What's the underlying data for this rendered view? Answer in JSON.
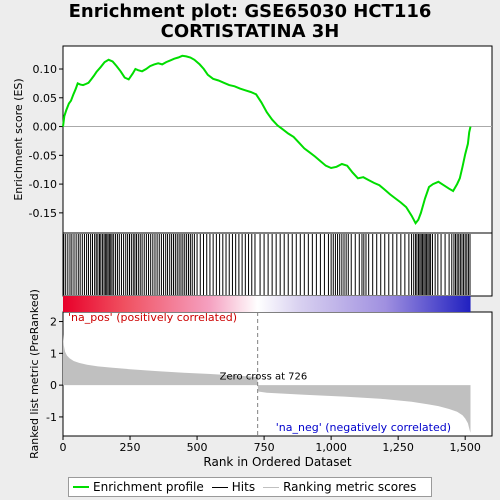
{
  "chart_data": {
    "type": "line",
    "title": "Enrichment plot: GSE65030 HCT116\nCORTISTATINA 3H",
    "colors": {
      "es_line": "#00dd00",
      "hits": "#000000",
      "metric_fill": "#c0c0c0",
      "pos_label": "#cc0000",
      "neg_label": "#0000cc",
      "zero_cross_line": "#808080"
    },
    "es_panel": {
      "ylabel": "Enrichment score (ES)",
      "ylim": [
        -0.185,
        0.14
      ],
      "yticks": [
        0.1,
        0.05,
        0.0,
        -0.05,
        -0.1,
        -0.15
      ],
      "ytick_labels": [
        "0.10",
        "0.05",
        "0.00",
        "-0.05",
        "-0.10",
        "-0.15"
      ],
      "series": [
        {
          "name": "Enrichment profile",
          "x": [
            0,
            5,
            12,
            22,
            30,
            38,
            47,
            55,
            65,
            75,
            85,
            95,
            105,
            115,
            125,
            140,
            155,
            170,
            185,
            200,
            215,
            230,
            245,
            260,
            270,
            280,
            295,
            310,
            325,
            340,
            355,
            370,
            385,
            400,
            415,
            430,
            445,
            460,
            475,
            490,
            510,
            525,
            540,
            560,
            580,
            600,
            620,
            640,
            660,
            680,
            700,
            720,
            740,
            760,
            780,
            800,
            820,
            840,
            860,
            880,
            900,
            920,
            940,
            960,
            980,
            1000,
            1020,
            1040,
            1060,
            1080,
            1100,
            1120,
            1140,
            1160,
            1180,
            1200,
            1220,
            1240,
            1260,
            1280,
            1300,
            1315,
            1325,
            1335,
            1350,
            1365,
            1380,
            1400,
            1420,
            1440,
            1455,
            1470,
            1480,
            1490,
            1500,
            1510,
            1515,
            1520
          ],
          "y": [
            0.0,
            0.018,
            0.028,
            0.04,
            0.045,
            0.055,
            0.065,
            0.075,
            0.073,
            0.072,
            0.074,
            0.076,
            0.082,
            0.088,
            0.095,
            0.103,
            0.112,
            0.116,
            0.113,
            0.105,
            0.096,
            0.085,
            0.082,
            0.092,
            0.1,
            0.098,
            0.096,
            0.1,
            0.105,
            0.108,
            0.11,
            0.108,
            0.112,
            0.115,
            0.118,
            0.12,
            0.123,
            0.122,
            0.12,
            0.116,
            0.108,
            0.1,
            0.09,
            0.083,
            0.08,
            0.076,
            0.072,
            0.07,
            0.066,
            0.063,
            0.06,
            0.056,
            0.042,
            0.025,
            0.012,
            0.002,
            -0.005,
            -0.012,
            -0.018,
            -0.028,
            -0.038,
            -0.045,
            -0.052,
            -0.06,
            -0.068,
            -0.072,
            -0.07,
            -0.065,
            -0.068,
            -0.08,
            -0.09,
            -0.088,
            -0.093,
            -0.098,
            -0.102,
            -0.11,
            -0.118,
            -0.125,
            -0.132,
            -0.14,
            -0.155,
            -0.168,
            -0.162,
            -0.15,
            -0.125,
            -0.105,
            -0.1,
            -0.096,
            -0.102,
            -0.108,
            -0.112,
            -0.1,
            -0.09,
            -0.07,
            -0.048,
            -0.03,
            -0.01,
            0.0
          ]
        }
      ]
    },
    "hits_panel": {
      "legend_name": "Hits",
      "positions": [
        3,
        10,
        18,
        26,
        33,
        41,
        49,
        57,
        64,
        72,
        80,
        88,
        95,
        103,
        110,
        118,
        124,
        130,
        136,
        141,
        147,
        153,
        158,
        163,
        168,
        173,
        178,
        183,
        189,
        196,
        203,
        210,
        218,
        226,
        234,
        241,
        248,
        255,
        262,
        268,
        274,
        281,
        288,
        295,
        303,
        311,
        319,
        327,
        335,
        343,
        351,
        359,
        367,
        375,
        383,
        390,
        398,
        405,
        412,
        419,
        426,
        433,
        440,
        447,
        454,
        461,
        468,
        475,
        482,
        490,
        500,
        512,
        524,
        536,
        548,
        560,
        572,
        584,
        596,
        608,
        620,
        632,
        644,
        656,
        668,
        680,
        692,
        704,
        716,
        735,
        750,
        765,
        780,
        795,
        810,
        825,
        840,
        855,
        870,
        885,
        900,
        915,
        930,
        945,
        960,
        975,
        990,
        1000,
        1008,
        1016,
        1024,
        1032,
        1040,
        1048,
        1056,
        1064,
        1075,
        1090,
        1105,
        1115,
        1122,
        1130,
        1140,
        1155,
        1170,
        1185,
        1200,
        1215,
        1230,
        1245,
        1260,
        1275,
        1290,
        1300,
        1308,
        1315,
        1320,
        1326,
        1331,
        1336,
        1341,
        1346,
        1351,
        1356,
        1361,
        1366,
        1371,
        1378,
        1388,
        1398,
        1410,
        1425,
        1440,
        1450,
        1458,
        1464,
        1470,
        1476,
        1482,
        1488,
        1494,
        1500,
        1506,
        1512,
        1518
      ]
    },
    "metric_panel": {
      "ylabel": "Ranked list metric (PreRanked)",
      "ylim": [
        -1.6,
        2.3
      ],
      "yticks": [
        2,
        1,
        0,
        -1
      ],
      "ytick_labels": [
        "2",
        "1",
        "0",
        "-1"
      ],
      "legend_name": "Ranking metric scores",
      "x": [
        0,
        3,
        8,
        15,
        25,
        40,
        60,
        90,
        130,
        180,
        250,
        350,
        450,
        550,
        650,
        700,
        725,
        726,
        728,
        760,
        900,
        1050,
        1200,
        1300,
        1360,
        1400,
        1440,
        1470,
        1490,
        1500,
        1510,
        1516,
        1520
      ],
      "y": [
        1.6,
        1.25,
        1.05,
        0.93,
        0.84,
        0.76,
        0.7,
        0.64,
        0.59,
        0.55,
        0.5,
        0.44,
        0.39,
        0.35,
        0.3,
        0.27,
        0.25,
        0.0,
        -0.2,
        -0.24,
        -0.3,
        -0.36,
        -0.44,
        -0.52,
        -0.6,
        -0.66,
        -0.75,
        -0.84,
        -0.95,
        -1.05,
        -1.2,
        -1.4,
        -1.5
      ],
      "zero_cross_label": "Zero cross at 726",
      "zero_cross_x": 726,
      "pos_label": "'na_pos' (positively correlated)",
      "neg_label": "'na_neg' (negatively correlated)"
    },
    "x_axis": {
      "xlabel": "Rank in Ordered Dataset",
      "xlim": [
        0,
        1600
      ],
      "ticks": [
        0,
        250,
        500,
        750,
        1000,
        1250,
        1500
      ],
      "tick_labels": [
        "0",
        "250",
        "500",
        "750",
        "1,000",
        "1,250",
        "1,500"
      ]
    },
    "legend": [
      "Enrichment profile",
      "Hits",
      "Ranking metric scores"
    ]
  }
}
